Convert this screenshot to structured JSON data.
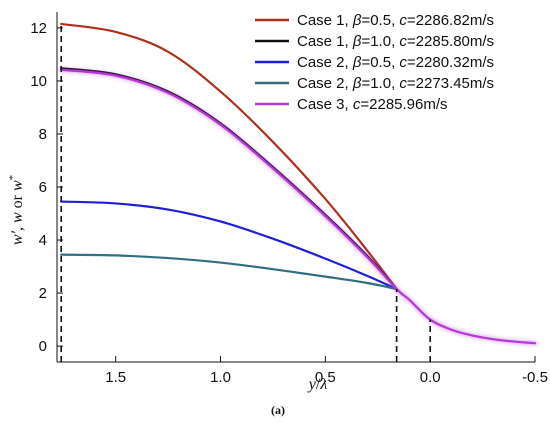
{
  "chart_data": {
    "type": "line",
    "panel_label": "(a)",
    "xlabel_parts": [
      "y",
      "/",
      "λ"
    ],
    "ylabel_parts": [
      "w′, w",
      " or ",
      "w",
      "*"
    ],
    "x_reversed": true,
    "xlim": [
      1.78,
      -0.5
    ],
    "ylim": [
      -0.6,
      12.6
    ],
    "x_ticks": [
      {
        "value": 1.5,
        "label": "1.5"
      },
      {
        "value": 1.0,
        "label": "1.0"
      },
      {
        "value": 0.5,
        "label": "0.5"
      },
      {
        "value": 0.0,
        "label": "0.0"
      },
      {
        "value": -0.5,
        "label": "-0.5"
      }
    ],
    "y_ticks": [
      {
        "value": 0,
        "label": "0"
      },
      {
        "value": 2,
        "label": "2"
      },
      {
        "value": 4,
        "label": "4"
      },
      {
        "value": 6,
        "label": "6"
      },
      {
        "value": 8,
        "label": "8"
      },
      {
        "value": 10,
        "label": "10"
      },
      {
        "value": 12,
        "label": "12"
      }
    ],
    "grid": false,
    "legend_position": "top-right",
    "dashed_verticals": [
      {
        "x": 1.76,
        "y_top": 12.15
      },
      {
        "x": 0.16,
        "y_top": 2.15
      },
      {
        "x": 0.0,
        "y_top": 1.0
      }
    ],
    "series": [
      {
        "name": "Case 1, β=0.5, c=2286.82m/s",
        "label_case": "Case 1, ",
        "label_param": "β",
        "label_param_value": "=0.5, ",
        "label_c": "c",
        "label_c_value": "=2286.82m/s",
        "color": "#b0301e",
        "halo": false,
        "points": [
          [
            1.76,
            12.15
          ],
          [
            1.5,
            11.85
          ],
          [
            1.25,
            11.1
          ],
          [
            1.0,
            9.6
          ],
          [
            0.75,
            7.7
          ],
          [
            0.5,
            5.55
          ],
          [
            0.3,
            3.6
          ],
          [
            0.16,
            2.15
          ]
        ]
      },
      {
        "name": "Case 1, β=1.0, c=2285.80m/s",
        "label_case": "Case 1, ",
        "label_param": "β",
        "label_param_value": "=1.0, ",
        "label_c": "c",
        "label_c_value": "=2285.80m/s",
        "color": "#111111",
        "halo": false,
        "points": [
          [
            1.76,
            10.48
          ],
          [
            1.5,
            10.25
          ],
          [
            1.25,
            9.6
          ],
          [
            1.0,
            8.4
          ],
          [
            0.75,
            6.75
          ],
          [
            0.5,
            4.95
          ],
          [
            0.3,
            3.4
          ],
          [
            0.16,
            2.15
          ]
        ]
      },
      {
        "name": "Case 2, β=0.5, c=2280.32m/s",
        "label_case": "Case 2, ",
        "label_param": "β",
        "label_param_value": "=0.5, ",
        "label_c": "c",
        "label_c_value": "=2280.32m/s",
        "color": "#1f1fd6",
        "halo": false,
        "points": [
          [
            1.76,
            5.45
          ],
          [
            1.5,
            5.38
          ],
          [
            1.25,
            5.15
          ],
          [
            1.0,
            4.7
          ],
          [
            0.75,
            4.05
          ],
          [
            0.5,
            3.3
          ],
          [
            0.3,
            2.65
          ],
          [
            0.16,
            2.15
          ]
        ]
      },
      {
        "name": "Case 2, β=1.0, c=2273.45m/s",
        "label_case": "Case 2, ",
        "label_param": "β",
        "label_param_value": "=1.0, ",
        "label_c": "c",
        "label_c_value": "=2273.45m/s",
        "color": "#2f6f80",
        "halo": false,
        "points": [
          [
            1.76,
            3.45
          ],
          [
            1.5,
            3.42
          ],
          [
            1.25,
            3.32
          ],
          [
            1.0,
            3.15
          ],
          [
            0.75,
            2.9
          ],
          [
            0.5,
            2.62
          ],
          [
            0.3,
            2.38
          ],
          [
            0.16,
            2.15
          ]
        ]
      },
      {
        "name": "Case 3, c=2285.96m/s",
        "label_case": "Case 3,  ",
        "label_param": "",
        "label_param_value": "",
        "label_c": "c",
        "label_c_value": "=2285.96m/s",
        "color": "#b33ad6",
        "halo": true,
        "points": [
          [
            1.76,
            10.42
          ],
          [
            1.5,
            10.2
          ],
          [
            1.25,
            9.55
          ],
          [
            1.0,
            8.35
          ],
          [
            0.75,
            6.7
          ],
          [
            0.5,
            4.9
          ],
          [
            0.3,
            3.35
          ],
          [
            0.16,
            2.15
          ],
          [
            0.1,
            1.75
          ],
          [
            0.0,
            1.0
          ],
          [
            -0.1,
            0.62
          ],
          [
            -0.2,
            0.4
          ],
          [
            -0.3,
            0.26
          ],
          [
            -0.4,
            0.17
          ],
          [
            -0.5,
            0.11
          ]
        ]
      }
    ]
  }
}
